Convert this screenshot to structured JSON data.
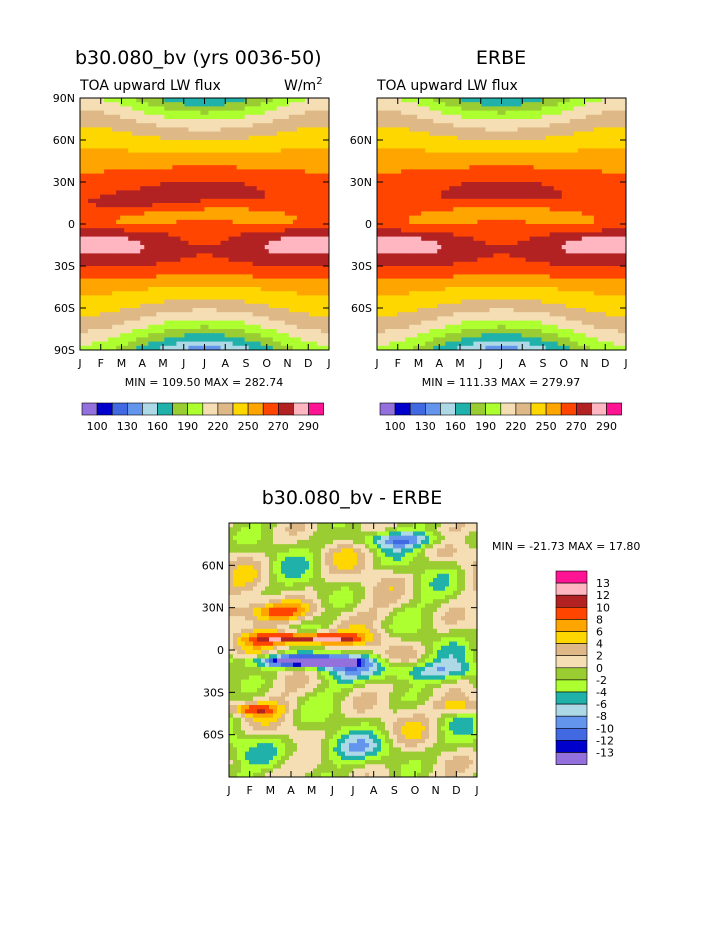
{
  "colors": {
    "lw_scale": [
      "#9370db",
      "#0000cd",
      "#4169e1",
      "#6495ed",
      "#add8e6",
      "#20b2aa",
      "#9acd32",
      "#adff2f",
      "#f5deb3",
      "#deb887",
      "#ffd700",
      "#ffa500",
      "#ff4500",
      "#b22222",
      "#ffb6c1",
      "#ff1493"
    ],
    "diff_scale": [
      "#9370db",
      "#0000cd",
      "#4169e1",
      "#6495ed",
      "#add8e6",
      "#20b2aa",
      "#adff2f",
      "#9acd32",
      "#f5deb3",
      "#deb887",
      "#ffd700",
      "#ffa500",
      "#ff4500",
      "#b22222",
      "#ffb6c1",
      "#ff1493"
    ]
  },
  "chart_data": [
    {
      "type": "heatmap",
      "title": "b30.080_bv (yrs 0036-50)",
      "subtitle_left": "TOA upward LW flux",
      "units": "W/m",
      "units_sup": "2",
      "x_ticks": [
        "J",
        "F",
        "M",
        "A",
        "M",
        "J",
        "J",
        "A",
        "S",
        "O",
        "N",
        "D",
        "J"
      ],
      "y_ticks": [
        "90N",
        "60N",
        "30N",
        "0",
        "30S",
        "60S",
        "90S"
      ],
      "ylim": [
        -90,
        90
      ],
      "stats": "MIN = 109.50 MAX = 282.74",
      "min": 109.5,
      "max": 282.74,
      "legend_labels": [
        "100",
        "130",
        "160",
        "190",
        "220",
        "250",
        "270",
        "290"
      ]
    },
    {
      "type": "heatmap",
      "title": "ERBE",
      "subtitle_left": "TOA upward LW flux",
      "x_ticks": [
        "J",
        "F",
        "M",
        "A",
        "M",
        "J",
        "J",
        "A",
        "S",
        "O",
        "N",
        "D",
        "J"
      ],
      "y_ticks": [
        "60N",
        "30N",
        "0",
        "30S",
        "60S"
      ],
      "ylim": [
        -90,
        90
      ],
      "stats": "MIN = 111.33 MAX = 279.97",
      "min": 111.33,
      "max": 279.97,
      "legend_labels": [
        "100",
        "130",
        "160",
        "190",
        "220",
        "250",
        "270",
        "290"
      ]
    },
    {
      "type": "heatmap",
      "title": "b30.080_bv - ERBE",
      "x_ticks": [
        "J",
        "F",
        "M",
        "A",
        "M",
        "J",
        "J",
        "A",
        "S",
        "O",
        "N",
        "D",
        "J"
      ],
      "y_ticks": [
        "60N",
        "30N",
        "0",
        "30S",
        "60S"
      ],
      "ylim": [
        -90,
        90
      ],
      "stats": "MIN = -21.73 MAX =  17.80",
      "min": -21.73,
      "max": 17.8,
      "legend_labels": [
        "13",
        "12",
        "10",
        "8",
        "6",
        "4",
        "2",
        "0",
        "-2",
        "-4",
        "-6",
        "-8",
        "-10",
        "-12",
        "-13"
      ]
    }
  ]
}
